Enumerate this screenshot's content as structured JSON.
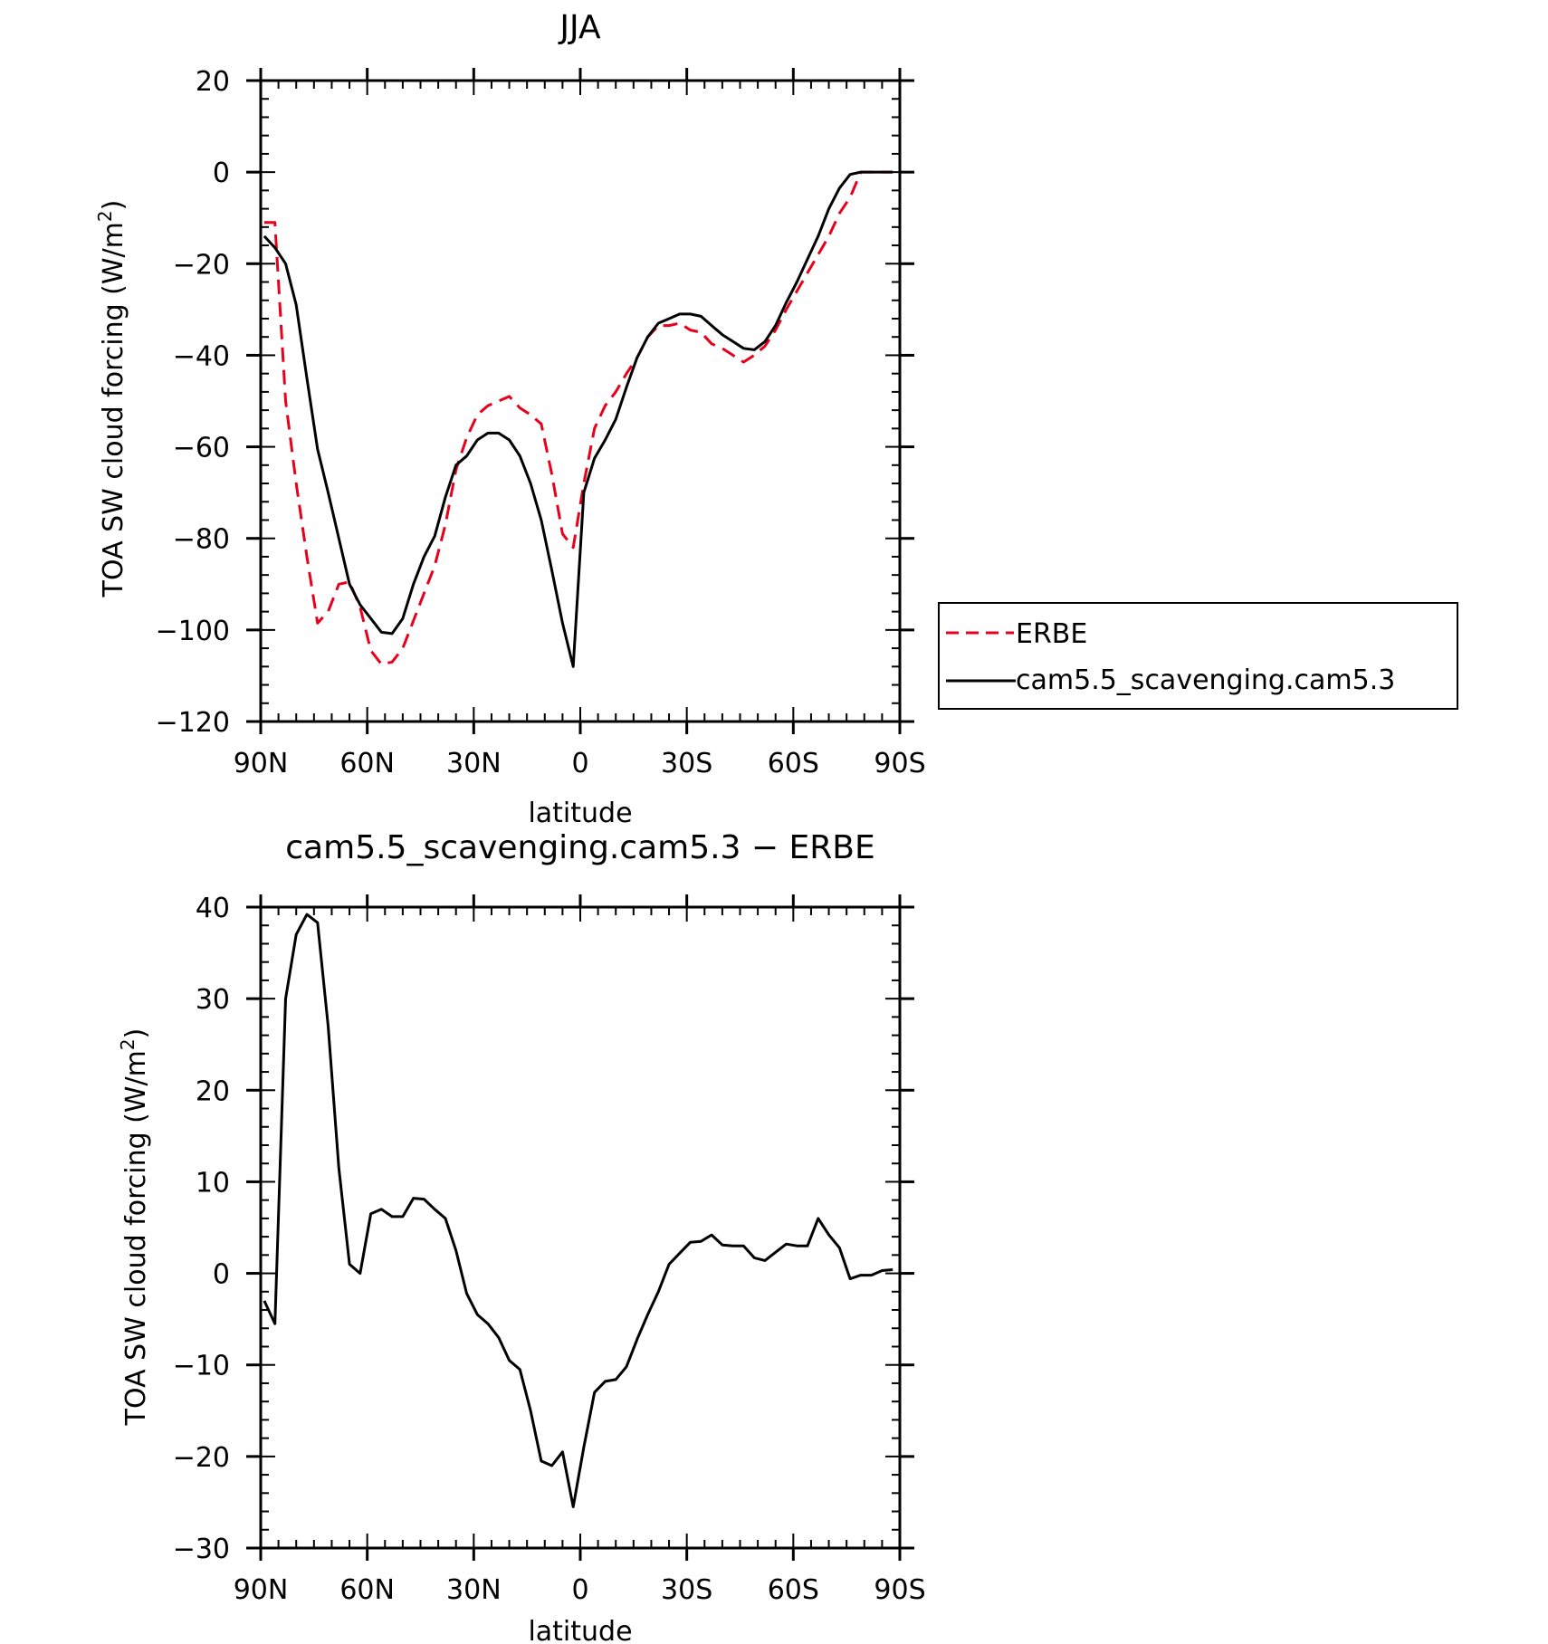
{
  "chart_data": [
    {
      "type": "line",
      "title": "JJA",
      "xlabel": "latitude",
      "ylabel": "TOA SW cloud forcing (W/m²)",
      "ylabel_text": "TOA SW cloud forcing (W/m",
      "ylabel_unit_sup": "2",
      "ylabel_close": ")",
      "xlim": [
        90,
        -90
      ],
      "ylim": [
        -120,
        20
      ],
      "xticks": [
        {
          "value": 90,
          "label": "90N"
        },
        {
          "value": 60,
          "label": "60N"
        },
        {
          "value": 30,
          "label": "30N"
        },
        {
          "value": 0,
          "label": "0"
        },
        {
          "value": -30,
          "label": "30S"
        },
        {
          "value": -60,
          "label": "60S"
        },
        {
          "value": -90,
          "label": "90S"
        }
      ],
      "yticks": [
        20,
        0,
        -20,
        -40,
        -60,
        -80,
        -100,
        -120
      ],
      "yticklabels": [
        "20",
        "0",
        "−20",
        "−40",
        "−60",
        "−80",
        "−100",
        "−120"
      ],
      "grid": false,
      "legend": {
        "placement": "right",
        "entries": [
          "ERBE",
          "cam5.5_scavenging.cam5.3"
        ]
      },
      "series": [
        {
          "name": "ERBE",
          "color": "#e8001c",
          "dash": "dashed",
          "x": [
            89,
            86,
            83,
            80,
            77,
            74,
            71,
            68,
            65,
            62,
            59,
            56,
            53,
            50,
            47,
            44,
            41,
            38,
            35,
            32,
            29,
            26,
            23,
            20,
            17,
            14,
            11,
            8,
            5,
            2,
            -1,
            -4,
            -7,
            -10,
            -13,
            -16,
            -19,
            -22,
            -25,
            -28,
            -31,
            -34,
            -37,
            -40,
            -43,
            -46,
            -49,
            -52,
            -55,
            -58,
            -61,
            -64,
            -67,
            -70,
            -73,
            -76,
            -79,
            -82,
            -85,
            -88
          ],
          "y": [
            -11,
            -11,
            -50,
            -68,
            -84,
            -98.5,
            -96,
            -90,
            -89.5,
            -95,
            -104.5,
            -107.5,
            -107,
            -104,
            -98,
            -92,
            -86,
            -77,
            -65,
            -58,
            -53,
            -51,
            -50,
            -49,
            -51.5,
            -53,
            -55,
            -66,
            -79,
            -82,
            -68,
            -56,
            -51,
            -48,
            -44,
            -40.5,
            -36,
            -33.5,
            -33.5,
            -33,
            -34.5,
            -35,
            -37.5,
            -38.5,
            -40,
            -41.5,
            -40,
            -38,
            -34.5,
            -30,
            -26,
            -22,
            -18,
            -14,
            -9,
            -5.5,
            0,
            0,
            0,
            0
          ]
        },
        {
          "name": "cam5.5_scavenging.cam5.3",
          "color": "#000000",
          "dash": "solid",
          "x": [
            89,
            86,
            83,
            80,
            77,
            74,
            71,
            68,
            65,
            62,
            59,
            56,
            53,
            50,
            47,
            44,
            41,
            38,
            35,
            32,
            29,
            26,
            23,
            20,
            17,
            14,
            11,
            8,
            5,
            2,
            -1,
            -4,
            -7,
            -10,
            -13,
            -16,
            -19,
            -22,
            -25,
            -28,
            -31,
            -34,
            -37,
            -40,
            -43,
            -46,
            -49,
            -52,
            -55,
            -58,
            -61,
            -64,
            -67,
            -70,
            -73,
            -76,
            -79,
            -82,
            -85,
            -88
          ],
          "y": [
            -14,
            -16.5,
            -20,
            -29,
            -45,
            -60.5,
            -70,
            -80,
            -90,
            -94.5,
            -97.5,
            -100.5,
            -100.8,
            -97.5,
            -90,
            -84,
            -79.5,
            -71,
            -64,
            -62,
            -58.5,
            -57,
            -57,
            -58.5,
            -62,
            -68,
            -76,
            -87,
            -98.5,
            -108,
            -70,
            -62.5,
            -58.5,
            -54,
            -47,
            -40.5,
            -36,
            -33,
            -32,
            -31,
            -31,
            -31.5,
            -33.5,
            -35.5,
            -37,
            -38.5,
            -38.8,
            -37,
            -33.5,
            -28.5,
            -24,
            -19,
            -14,
            -8,
            -3.5,
            -0.5,
            0,
            0,
            0,
            0
          ]
        }
      ]
    },
    {
      "type": "line",
      "title": "cam5.5_scavenging.cam5.3 − ERBE",
      "xlabel": "latitude",
      "ylabel": "TOA SW cloud forcing (W/m²)",
      "ylabel_text": "TOA SW cloud forcing (W/m",
      "ylabel_unit_sup": "2",
      "ylabel_close": ")",
      "xlim": [
        90,
        -90
      ],
      "ylim": [
        -30,
        40
      ],
      "xticks": [
        {
          "value": 90,
          "label": "90N"
        },
        {
          "value": 60,
          "label": "60N"
        },
        {
          "value": 30,
          "label": "30N"
        },
        {
          "value": 0,
          "label": "0"
        },
        {
          "value": -30,
          "label": "30S"
        },
        {
          "value": -60,
          "label": "60S"
        },
        {
          "value": -90,
          "label": "90S"
        }
      ],
      "yticks": [
        40,
        30,
        20,
        10,
        0,
        -10,
        -20,
        -30
      ],
      "yticklabels": [
        "40",
        "30",
        "20",
        "10",
        "0",
        "−10",
        "−20",
        "−30"
      ],
      "grid": false,
      "series": [
        {
          "color": "#000000",
          "dash": "solid",
          "x": [
            89,
            86,
            83,
            80,
            77,
            74,
            71,
            68,
            65,
            62,
            59,
            56,
            53,
            50,
            47,
            44,
            41,
            38,
            35,
            32,
            29,
            26,
            23,
            20,
            17,
            14,
            11,
            8,
            5,
            2,
            -1,
            -4,
            -7,
            -10,
            -13,
            -16,
            -19,
            -22,
            -25,
            -28,
            -31,
            -34,
            -37,
            -40,
            -43,
            -46,
            -49,
            -52,
            -55,
            -58,
            -61,
            -64,
            -67,
            -70,
            -73,
            -76,
            -79,
            -82,
            -85,
            -88
          ],
          "y": [
            -3,
            -5.5,
            30,
            37,
            39.2,
            38.3,
            27,
            11.5,
            1,
            0,
            6.5,
            7,
            6.2,
            6.2,
            8.2,
            8.1,
            7,
            6,
            2.5,
            -2.2,
            -4.5,
            -5.5,
            -7,
            -9.5,
            -10.5,
            -15,
            -20.5,
            -21,
            -19.5,
            -25.5,
            -19,
            -13,
            -11.8,
            -11.6,
            -10.2,
            -7.2,
            -4.5,
            -2,
            1,
            2.2,
            3.4,
            3.5,
            4.2,
            3.1,
            3,
            3,
            1.7,
            1.4,
            2.3,
            3.2,
            3,
            3,
            6,
            4.2,
            2.8,
            -0.6,
            -0.2,
            -0.2,
            0.3,
            0.4
          ]
        }
      ]
    }
  ]
}
